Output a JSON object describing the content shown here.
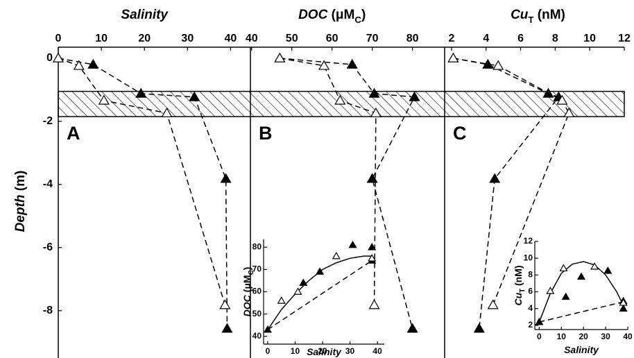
{
  "chart_data": [
    {
      "type": "line",
      "title": [
        {
          "text": "Salinity",
          "italic": true
        }
      ],
      "panel_label": "A",
      "xlim": [
        0,
        44.6
      ],
      "xticks": [
        0,
        10,
        20,
        30,
        40
      ],
      "ylim": [
        -9.5,
        0.35
      ],
      "yticks": [
        0,
        -2,
        -4,
        -6,
        -8
      ],
      "ylabel": [
        {
          "text": "Depth",
          "italic": true
        },
        {
          "text": " (m)"
        }
      ],
      "band": [
        -1.05,
        -1.85
      ],
      "series": [
        {
          "marker": "filled",
          "linestyle": "dashed",
          "color": "#000000",
          "x": [
            0,
            8.1,
            19.2,
            31.6,
            38.9,
            39.2
          ],
          "values": [
            0,
            -0.2,
            -1.12,
            -1.23,
            -3.82,
            -8.57
          ]
        },
        {
          "marker": "open",
          "linestyle": "dashed",
          "color": "#000000",
          "x": [
            0,
            4.8,
            10.6,
            25.2,
            38.7
          ],
          "values": [
            0,
            -0.24,
            -1.34,
            -1.74,
            -7.82
          ]
        }
      ]
    },
    {
      "type": "line",
      "title": [
        {
          "text": "DOC",
          "italic": true
        },
        {
          "text": " (μM"
        },
        {
          "text": "C",
          "sub": true
        },
        {
          "text": ")"
        }
      ],
      "panel_label": "B",
      "xlim": [
        39.7,
        88
      ],
      "xticks": [
        40,
        50,
        60,
        70,
        80
      ],
      "ylim": [
        -9.5,
        0.35
      ],
      "series": [
        {
          "marker": "filled",
          "linestyle": "dashed",
          "color": "#000000",
          "x": [
            47,
            65,
            70.5,
            80.5,
            70,
            80
          ],
          "values": [
            0,
            -0.2,
            -1.12,
            -1.23,
            -3.82,
            -8.57
          ]
        },
        {
          "marker": "open",
          "linestyle": "dashed",
          "color": "#000000",
          "x": [
            47,
            58,
            62,
            70.9,
            70.5
          ],
          "values": [
            0,
            -0.24,
            -1.34,
            -1.74,
            -7.82
          ]
        }
      ]
    },
    {
      "type": "line",
      "title": [
        {
          "text": "Cu",
          "italic": true
        },
        {
          "text": "T",
          "sub": true
        },
        {
          "text": " (nM)"
        }
      ],
      "panel_label": "C",
      "xlim": [
        1.6,
        12
      ],
      "xticks": [
        2,
        4,
        6,
        8,
        10,
        12
      ],
      "ylim": [
        -9.5,
        0.35
      ],
      "series": [
        {
          "marker": "filled",
          "linestyle": "dashed",
          "color": "#000000",
          "x": [
            2.1,
            4.1,
            7.6,
            8.2,
            4.5,
            3.6
          ],
          "values": [
            0,
            -0.2,
            -1.12,
            -1.23,
            -3.82,
            -8.57
          ]
        },
        {
          "marker": "open",
          "linestyle": "dashed",
          "color": "#000000",
          "x": [
            2.1,
            4.7,
            8.4,
            8.8,
            4.4
          ],
          "values": [
            0,
            -0.24,
            -1.34,
            -1.74,
            -7.82
          ]
        }
      ]
    },
    {
      "type": "line",
      "xlabel": [
        {
          "text": "Salinity",
          "italic": true
        }
      ],
      "ylabel": [
        {
          "text": "DOC",
          "italic": true
        },
        {
          "text": " (μM"
        },
        {
          "text": "C",
          "sub": true
        },
        {
          "text": ")"
        }
      ],
      "xlim": [
        -1.5,
        42.5
      ],
      "xticks": [
        0,
        10,
        20,
        30,
        40
      ],
      "ylim": [
        36.5,
        83.5
      ],
      "yticks": [
        40,
        50,
        60,
        70,
        80
      ],
      "series": [
        {
          "marker": "none",
          "linestyle": "solid",
          "color": "#000000",
          "x": [
            0,
            5,
            10,
            15,
            20,
            25,
            30,
            35,
            38
          ],
          "values": [
            43,
            52,
            59,
            65,
            70,
            73,
            75,
            76,
            76
          ]
        },
        {
          "marker": "none",
          "linestyle": "dashed",
          "color": "#000000",
          "x": [
            0,
            38
          ],
          "values": [
            43,
            74
          ]
        },
        {
          "marker": "filled",
          "linestyle": "none",
          "color": "#000000",
          "x": [
            0,
            13,
            19,
            31,
            38,
            38
          ],
          "values": [
            43,
            64,
            69,
            81,
            80,
            74
          ]
        },
        {
          "marker": "open",
          "linestyle": "none",
          "color": "#000000",
          "x": [
            5,
            11,
            25,
            38
          ],
          "values": [
            56,
            60,
            76,
            75
          ]
        }
      ]
    },
    {
      "type": "line",
      "xlabel": [
        {
          "text": "Salinity",
          "italic": true
        }
      ],
      "ylabel": [
        {
          "text": "Cu",
          "italic": true
        },
        {
          "text": "T",
          "sub": true
        },
        {
          "text": " (nM)"
        }
      ],
      "xlim": [
        -2,
        40
      ],
      "xticks": [
        0,
        10,
        20,
        30,
        40
      ],
      "ylim": [
        1.5,
        12
      ],
      "yticks": [
        2,
        4,
        6,
        8,
        10,
        12
      ],
      "series": [
        {
          "marker": "none",
          "linestyle": "solid",
          "color": "#000000",
          "x": [
            0,
            5,
            10,
            15,
            20,
            25,
            30,
            35,
            38
          ],
          "values": [
            2.4,
            5.8,
            8.2,
            9.3,
            9.6,
            9.2,
            8.0,
            6.0,
            4.4
          ]
        },
        {
          "marker": "none",
          "linestyle": "dashed",
          "color": "#000000",
          "x": [
            0,
            38
          ],
          "values": [
            2.4,
            4.8
          ]
        },
        {
          "marker": "filled",
          "linestyle": "none",
          "color": "#000000",
          "x": [
            0,
            12,
            19,
            31,
            38,
            38
          ],
          "values": [
            2.4,
            5.4,
            7.8,
            8.5,
            4.9,
            4.0
          ]
        },
        {
          "marker": "open",
          "linestyle": "none",
          "color": "#000000",
          "x": [
            5,
            11,
            25,
            38
          ],
          "values": [
            6.1,
            8.8,
            9,
            4.7
          ]
        }
      ]
    }
  ]
}
